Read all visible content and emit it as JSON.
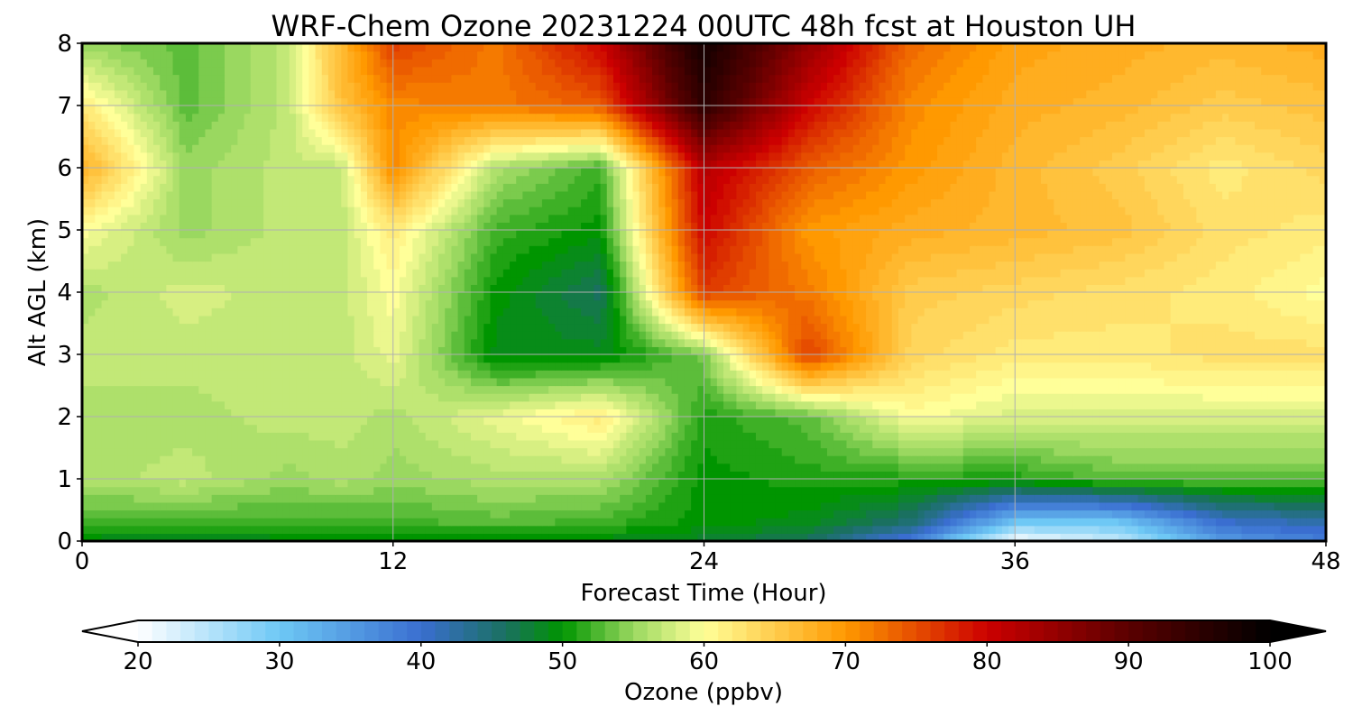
{
  "chart_data": {
    "type": "heatmap",
    "title": "WRF-Chem Ozone  20231224 00UTC 48h fcst at Houston UH",
    "xlabel": "Forecast Time (Hour)",
    "ylabel": "Alt AGL (km)",
    "xlim": [
      0,
      48
    ],
    "ylim": [
      0,
      8
    ],
    "xticks": [
      "0",
      "12",
      "24",
      "36",
      "48"
    ],
    "yticks": [
      "0",
      "1",
      "2",
      "3",
      "4",
      "5",
      "6",
      "7",
      "8"
    ],
    "grid": true,
    "z_hours": [
      0,
      4,
      8,
      10,
      12,
      16,
      20,
      24,
      28,
      32,
      36,
      40,
      44,
      48
    ],
    "z_altitudes_km": [
      0,
      0.3,
      1,
      2,
      3,
      4,
      5,
      6,
      7,
      8
    ],
    "z_values_ppbv": [
      [
        49,
        48,
        49,
        49,
        49,
        49,
        49,
        48,
        46,
        38,
        20,
        24,
        35,
        38
      ],
      [
        52,
        52,
        52,
        52,
        52,
        53,
        52,
        50,
        49,
        45,
        30,
        30,
        40,
        42
      ],
      [
        56,
        57,
        55,
        56,
        55,
        56,
        56,
        50,
        51,
        51,
        51,
        53,
        53,
        53
      ],
      [
        56,
        56,
        57,
        57,
        56,
        59,
        62,
        51,
        53,
        60,
        58,
        58,
        58,
        58
      ],
      [
        57,
        57,
        57,
        57,
        59,
        49,
        49,
        54,
        76,
        64,
        62,
        62,
        63,
        63
      ],
      [
        56,
        58,
        57,
        57,
        60,
        50,
        46,
        76,
        72,
        65,
        64,
        63,
        62,
        60
      ],
      [
        60,
        55,
        57,
        57,
        62,
        52,
        50,
        80,
        70,
        68,
        67,
        66,
        63,
        62
      ],
      [
        68,
        55,
        57,
        57,
        71,
        56,
        52,
        82,
        74,
        70,
        67,
        65,
        62,
        64
      ],
      [
        62,
        53,
        57,
        66,
        71,
        72,
        74,
        95,
        80,
        71,
        68,
        67,
        65,
        66
      ],
      [
        55,
        53,
        57,
        67,
        76,
        72,
        80,
        98,
        85,
        73,
        69,
        68,
        67,
        68
      ]
    ],
    "colorbar": {
      "label": "Ozone  (ppbv)",
      "min": 20,
      "max": 100,
      "step": 1,
      "ticks": [
        "20",
        "30",
        "40",
        "50",
        "60",
        "70",
        "80",
        "90",
        "100"
      ],
      "extend": "both",
      "color_stops": [
        [
          20,
          "#ffffff"
        ],
        [
          30,
          "#6ec8f5"
        ],
        [
          40,
          "#3a6ed0"
        ],
        [
          46,
          "#1a7060"
        ],
        [
          50,
          "#009500"
        ],
        [
          55,
          "#9ad860"
        ],
        [
          60,
          "#ffff99"
        ],
        [
          70,
          "#ff9900"
        ],
        [
          80,
          "#cc0000"
        ],
        [
          90,
          "#5a0000"
        ],
        [
          100,
          "#000000"
        ]
      ]
    }
  }
}
